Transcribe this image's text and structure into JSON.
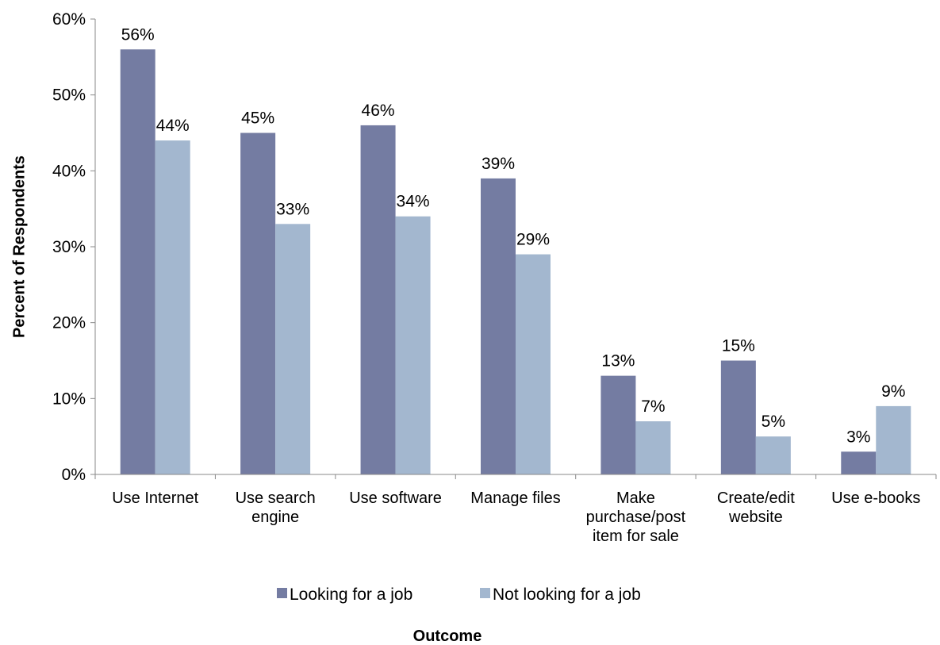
{
  "chart_data": {
    "type": "bar",
    "categories": [
      [
        "Use Internet"
      ],
      [
        "Use search",
        "engine"
      ],
      [
        "Use software"
      ],
      [
        "Manage files"
      ],
      [
        "Make",
        "purchase/post",
        "item for sale"
      ],
      [
        "Create/edit",
        "website"
      ],
      [
        "Use e-books"
      ]
    ],
    "series": [
      {
        "name": "Looking for a job",
        "color": "#747ca2",
        "values": [
          56,
          45,
          46,
          39,
          13,
          15,
          3
        ]
      },
      {
        "name": "Not looking for a job",
        "color": "#a3b7cf",
        "values": [
          44,
          33,
          34,
          29,
          7,
          5,
          9
        ]
      }
    ],
    "xlabel": "Outcome",
    "ylabel": "Percent of Respondents",
    "ylim": [
      0,
      60
    ],
    "yticks": [
      0,
      10,
      20,
      30,
      40,
      50,
      60
    ],
    "value_suffix": "%",
    "grid": false,
    "legend_position": "bottom"
  }
}
